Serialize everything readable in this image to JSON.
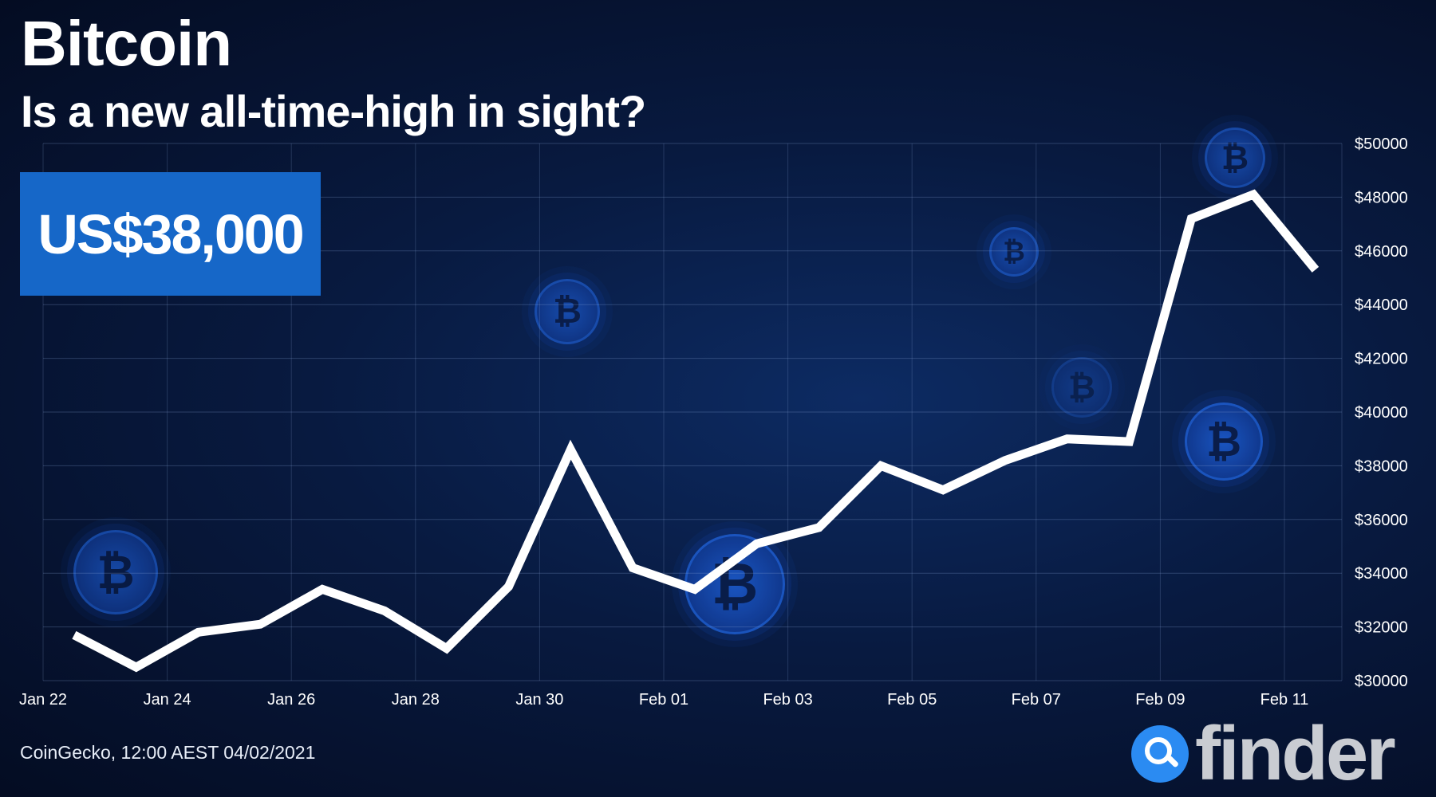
{
  "header": {
    "title": "Bitcoin",
    "subtitle": "Is a new all-time-high in sight?"
  },
  "price_badge": "US$38,000",
  "source": "CoinGecko, 12:00 AEST 04/02/2021",
  "logo": {
    "text": "finder",
    "icon": "magnifier-icon"
  },
  "colors": {
    "background": "#081a40",
    "line": "#ffffff",
    "badge": "#1667c8",
    "logo_icon": "#2b8bf2"
  },
  "decor": {
    "icon": "bitcoin-coin-icon",
    "glyph": "₿"
  },
  "chart_data": {
    "type": "line",
    "title": "Bitcoin",
    "subtitle": "Is a new all-time-high in sight?",
    "xlabel": "",
    "ylabel": "",
    "x_tick_labels": [
      "Jan 22",
      "Jan 24",
      "Jan 26",
      "Jan 28",
      "Jan 30",
      "Feb 01",
      "Feb 03",
      "Feb 05",
      "Feb 07",
      "Feb 09",
      "Feb 11"
    ],
    "y_tick_labels": [
      "$30000",
      "$32000",
      "$34000",
      "$36000",
      "$38000",
      "$40000",
      "$42000",
      "$44000",
      "$46000",
      "$48000",
      "$50000"
    ],
    "ylim": [
      30000,
      50000
    ],
    "y_axis_side": "right",
    "grid": true,
    "x": [
      "2021-01-22 12:00",
      "2021-01-23 12:00",
      "2021-01-24 12:00",
      "2021-01-25 12:00",
      "2021-01-26 12:00",
      "2021-01-27 12:00",
      "2021-01-28 12:00",
      "2021-01-29 12:00",
      "2021-01-30 12:00",
      "2021-01-31 12:00",
      "2021-02-01 12:00",
      "2021-02-02 12:00",
      "2021-02-03 12:00",
      "2021-02-04 12:00",
      "2021-02-05 12:00",
      "2021-02-06 12:00",
      "2021-02-07 12:00",
      "2021-02-08 12:00",
      "2021-02-09 12:00",
      "2021-02-10 12:00",
      "2021-02-11 12:00"
    ],
    "values": [
      31700,
      30500,
      31800,
      32100,
      33400,
      32600,
      31200,
      33500,
      38600,
      34200,
      33400,
      35100,
      35700,
      38000,
      37100,
      38200,
      39000,
      38900,
      47200,
      48100,
      45300
    ]
  }
}
